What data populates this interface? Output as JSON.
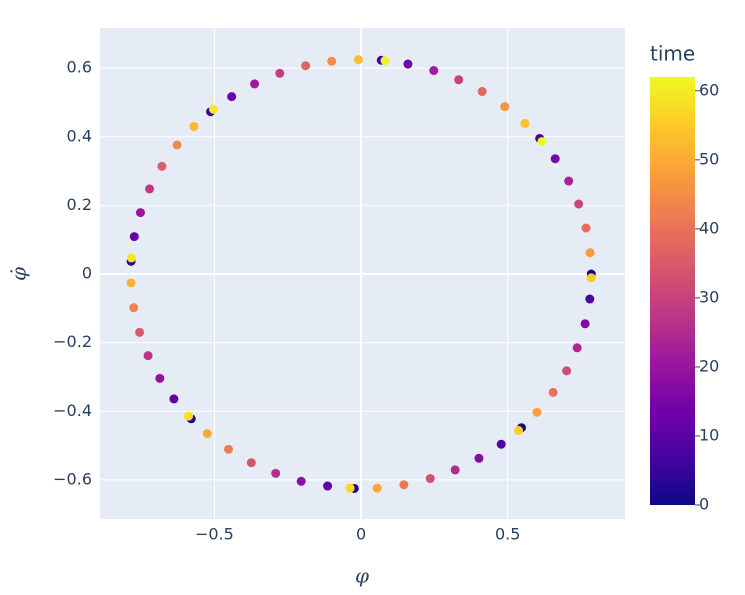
{
  "chart_data": {
    "type": "scatter",
    "xlabel": "φ",
    "ylabel": "φ̇",
    "xlim": [
      -0.89,
      0.9
    ],
    "ylim": [
      -0.714,
      0.717
    ],
    "xticks": [
      {
        "value": -0.5,
        "label": "−0.5"
      },
      0,
      0.5
    ],
    "yticks": [
      {
        "value": -0.6,
        "label": "−0.6"
      },
      {
        "value": -0.4,
        "label": "−0.4"
      },
      {
        "value": -0.2,
        "label": "−0.2"
      },
      0,
      0.2,
      0.4,
      0.6
    ],
    "grid": true,
    "colorbar": {
      "title": "time",
      "lim": [
        0,
        62
      ],
      "ticks": [
        0,
        10,
        20,
        30,
        40,
        50,
        60
      ],
      "colorscale": [
        "#0d0887",
        "#46039f",
        "#7201a8",
        "#9c179e",
        "#bd3786",
        "#d8576b",
        "#ed7953",
        "#fb9f3a",
        "#fdca26",
        "#f0f921"
      ]
    },
    "x": [
      0.785,
      0.547,
      -0.023,
      -0.579,
      -0.784,
      -0.513,
      0.069,
      0.609,
      0.78,
      0.478,
      -0.114,
      -0.638,
      -0.773,
      -0.441,
      0.16,
      0.662,
      0.764,
      0.402,
      -0.204,
      -0.686,
      -0.752,
      -0.363,
      0.248,
      0.708,
      0.737,
      0.321,
      -0.291,
      -0.726,
      -0.721,
      -0.277,
      0.333,
      0.742,
      0.701,
      0.236,
      -0.374,
      -0.755,
      -0.679,
      -0.189,
      0.413,
      0.767,
      0.655,
      0.146,
      -0.452,
      -0.775,
      -0.627,
      -0.1,
      0.49,
      0.781,
      0.6,
      0.055,
      -0.524,
      -0.784,
      -0.57,
      -0.009,
      0.559,
      0.785,
      0.537,
      -0.037,
      -0.588,
      -0.783,
      -0.503,
      0.082,
      0.617
    ],
    "y": [
      0,
      -0.448,
      -0.625,
      -0.422,
      0.037,
      0.473,
      0.623,
      0.395,
      -0.073,
      -0.496,
      -0.618,
      -0.364,
      0.109,
      0.517,
      0.612,
      0.336,
      -0.145,
      -0.537,
      -0.604,
      -0.304,
      0.179,
      0.554,
      0.593,
      0.271,
      -0.215,
      -0.571,
      -0.581,
      -0.238,
      0.248,
      0.585,
      0.566,
      0.204,
      -0.282,
      -0.596,
      -0.55,
      -0.17,
      0.314,
      0.607,
      0.532,
      0.134,
      -0.345,
      -0.614,
      -0.511,
      -0.098,
      0.376,
      0.62,
      0.488,
      0.062,
      -0.403,
      -0.624,
      -0.465,
      -0.026,
      0.43,
      0.625,
      0.439,
      -0.011,
      -0.456,
      -0.624,
      -0.414,
      0.047,
      0.48,
      0.622,
      0.386
    ],
    "time": [
      0,
      1,
      2,
      3,
      4,
      5,
      6,
      7,
      8,
      9,
      10,
      11,
      12,
      13,
      14,
      15,
      16,
      17,
      18,
      19,
      20,
      21,
      22,
      23,
      24,
      25,
      26,
      27,
      28,
      29,
      30,
      31,
      32,
      33,
      34,
      35,
      36,
      37,
      38,
      39,
      40,
      41,
      42,
      43,
      44,
      45,
      46,
      47,
      48,
      49,
      50,
      51,
      52,
      53,
      54,
      55,
      56,
      57,
      58,
      59,
      60,
      61,
      62
    ]
  }
}
